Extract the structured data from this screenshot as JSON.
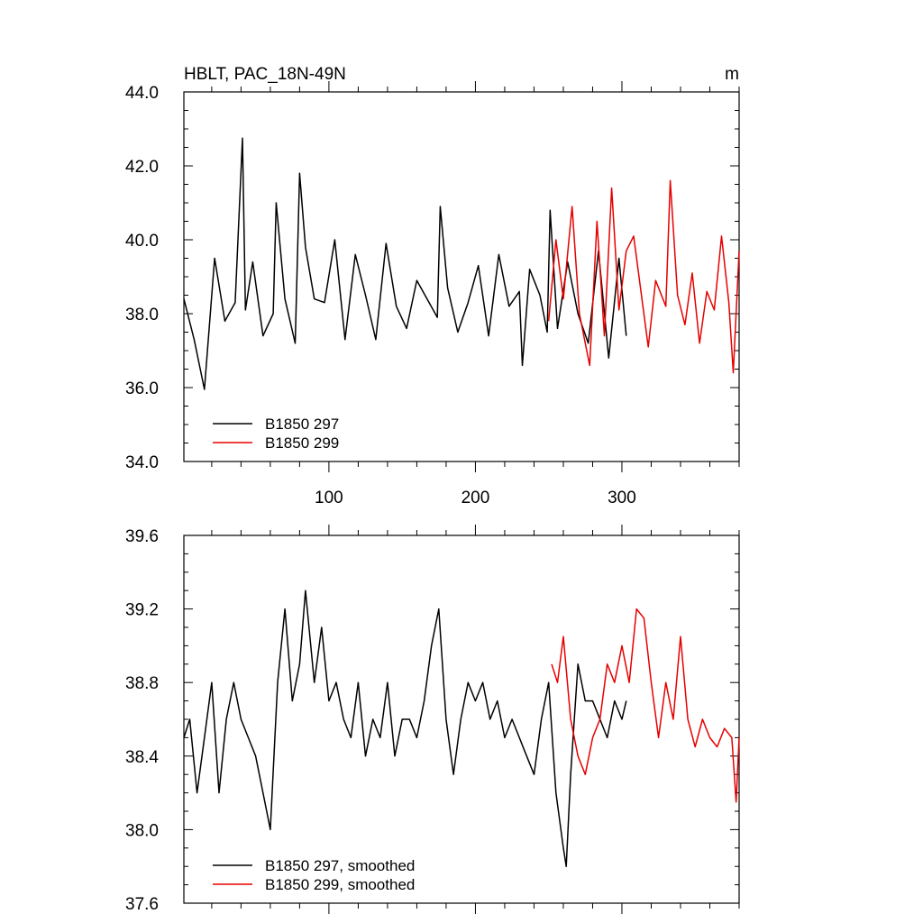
{
  "chart_data": [
    {
      "type": "line",
      "title": "HBLT, PAC_18N-49N",
      "units": "m",
      "xlim": [
        1,
        380
      ],
      "ylim": [
        34.0,
        44.0
      ],
      "xticks": [
        100,
        200,
        300
      ],
      "xtick_labels": [
        "100",
        "200",
        "300"
      ],
      "yticks": [
        34,
        36,
        38,
        40,
        42,
        44
      ],
      "ytick_labels": [
        "34.0",
        "36.0",
        "38.0",
        "40.0",
        "42.0",
        "44.0"
      ],
      "legend_position": "bottom-left",
      "series": [
        {
          "name": "B1850 297",
          "color": "#000000",
          "x": [
            1,
            8,
            15,
            22,
            29,
            36,
            41,
            43,
            48,
            55,
            62,
            64,
            70,
            77,
            80,
            84,
            90,
            97,
            104,
            111,
            118,
            125,
            132,
            139,
            146,
            153,
            160,
            167,
            174,
            176,
            181,
            188,
            195,
            202,
            209,
            216,
            223,
            230,
            232,
            237,
            244,
            249,
            251,
            256,
            263,
            270,
            277,
            284,
            291,
            298,
            303
          ],
          "values": [
            38.4,
            37.3,
            35.95,
            39.5,
            37.8,
            38.3,
            42.75,
            38.1,
            39.4,
            37.4,
            38.0,
            41.0,
            38.4,
            37.2,
            41.8,
            39.8,
            38.4,
            38.3,
            40.0,
            37.3,
            39.6,
            38.5,
            37.3,
            39.9,
            38.2,
            37.6,
            38.9,
            38.4,
            37.9,
            40.9,
            38.7,
            37.5,
            38.3,
            39.3,
            37.4,
            39.6,
            38.2,
            38.6,
            36.6,
            39.2,
            38.5,
            37.5,
            40.8,
            37.6,
            39.4,
            38.0,
            37.2,
            39.7,
            36.8,
            39.5,
            37.4
          ]
        },
        {
          "name": "B1850 299",
          "color": "#e60000",
          "x": [
            250,
            255,
            260,
            266,
            271,
            278,
            283,
            288,
            293,
            298,
            303,
            308,
            313,
            318,
            323,
            330,
            333,
            338,
            343,
            348,
            353,
            358,
            363,
            368,
            373,
            376,
            380
          ],
          "values": [
            37.8,
            40.0,
            38.4,
            40.9,
            38.0,
            36.6,
            40.5,
            37.4,
            41.4,
            38.1,
            39.7,
            40.1,
            38.6,
            37.1,
            38.9,
            38.2,
            41.6,
            38.5,
            37.7,
            39.1,
            37.2,
            38.6,
            38.1,
            40.1,
            38.3,
            36.4,
            39.7
          ]
        }
      ]
    },
    {
      "type": "line",
      "xlim": [
        1,
        380
      ],
      "ylim": [
        37.6,
        39.6
      ],
      "yticks": [
        37.6,
        38.0,
        38.4,
        38.8,
        39.2,
        39.6
      ],
      "ytick_labels": [
        "37.6",
        "38.0",
        "38.4",
        "38.8",
        "39.2",
        "39.6"
      ],
      "legend_position": "bottom-left",
      "series": [
        {
          "name": "B1850 297, smoothed",
          "color": "#000000",
          "x": [
            1,
            5,
            10,
            15,
            20,
            25,
            30,
            35,
            40,
            45,
            50,
            55,
            60,
            65,
            70,
            75,
            80,
            84,
            90,
            95,
            100,
            105,
            110,
            115,
            120,
            125,
            130,
            135,
            140,
            145,
            150,
            155,
            160,
            165,
            170,
            175,
            180,
            185,
            190,
            195,
            200,
            205,
            210,
            215,
            220,
            225,
            230,
            235,
            240,
            245,
            250,
            255,
            260,
            262,
            265,
            270,
            275,
            280,
            285,
            290,
            295,
            300,
            303
          ],
          "values": [
            38.5,
            38.6,
            38.2,
            38.5,
            38.8,
            38.2,
            38.6,
            38.8,
            38.6,
            38.5,
            38.4,
            38.2,
            38.0,
            38.8,
            39.2,
            38.7,
            38.9,
            39.3,
            38.8,
            39.1,
            38.7,
            38.8,
            38.6,
            38.5,
            38.8,
            38.4,
            38.6,
            38.5,
            38.8,
            38.4,
            38.6,
            38.6,
            38.5,
            38.7,
            39.0,
            39.2,
            38.6,
            38.3,
            38.6,
            38.8,
            38.7,
            38.8,
            38.6,
            38.7,
            38.5,
            38.6,
            38.5,
            38.4,
            38.3,
            38.6,
            38.8,
            38.2,
            37.9,
            37.8,
            38.3,
            38.9,
            38.7,
            38.7,
            38.6,
            38.5,
            38.7,
            38.6,
            38.7
          ]
        },
        {
          "name": "B1850 299, smoothed",
          "color": "#e60000",
          "x": [
            252,
            256,
            260,
            265,
            270,
            275,
            280,
            285,
            290,
            295,
            300,
            305,
            310,
            315,
            320,
            325,
            330,
            335,
            340,
            345,
            350,
            355,
            360,
            365,
            370,
            375,
            378,
            380
          ],
          "values": [
            38.9,
            38.8,
            39.05,
            38.6,
            38.4,
            38.3,
            38.5,
            38.6,
            38.9,
            38.8,
            39.0,
            38.8,
            39.2,
            39.15,
            38.8,
            38.5,
            38.8,
            38.6,
            39.05,
            38.6,
            38.45,
            38.6,
            38.5,
            38.45,
            38.55,
            38.5,
            38.15,
            38.5
          ]
        }
      ]
    }
  ]
}
